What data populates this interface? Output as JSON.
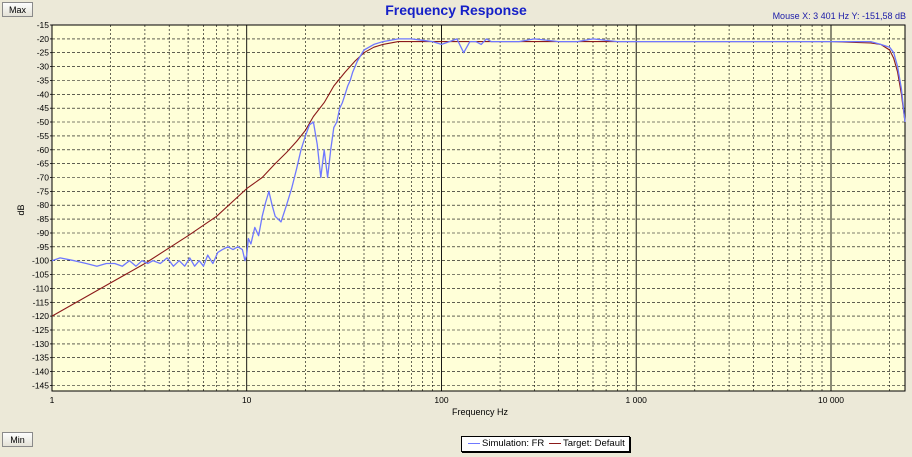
{
  "buttons": {
    "max": "Max",
    "min": "Min"
  },
  "mouse_readout": {
    "x": "Mouse X: 3 401 Hz",
    "y": "Y: -151,58 dB"
  },
  "colors": {
    "plot_bg": "#ffffd8",
    "grid": "#000000",
    "simulation": "#6f78ff",
    "target": "#8b1a1a",
    "title": "#1520c8"
  },
  "chart_data": {
    "type": "line",
    "title": "Frequency Response",
    "xlabel": "Frequency Hz",
    "ylabel": "dB",
    "x_scale": "log",
    "xlim": [
      1,
      24000
    ],
    "ylim": [
      -147,
      -15
    ],
    "grid": true,
    "legend_position": "bottom-center",
    "x_ticks": [
      {
        "value": 1,
        "label": "1"
      },
      {
        "value": 10,
        "label": "10"
      },
      {
        "value": 100,
        "label": "100"
      },
      {
        "value": 1000,
        "label": "1 000"
      },
      {
        "value": 10000,
        "label": "10 000"
      }
    ],
    "y_ticks": [
      {
        "value": -15,
        "label": "-15"
      },
      {
        "value": -20,
        "label": "-20"
      },
      {
        "value": -25,
        "label": "-25"
      },
      {
        "value": -30,
        "label": "-30"
      },
      {
        "value": -35,
        "label": "-35"
      },
      {
        "value": -40,
        "label": "-40"
      },
      {
        "value": -45,
        "label": "-45"
      },
      {
        "value": -50,
        "label": "-50"
      },
      {
        "value": -55,
        "label": "-55"
      },
      {
        "value": -60,
        "label": "-60"
      },
      {
        "value": -65,
        "label": "-65"
      },
      {
        "value": -70,
        "label": "-70"
      },
      {
        "value": -75,
        "label": "-75"
      },
      {
        "value": -80,
        "label": "-80"
      },
      {
        "value": -85,
        "label": "-85"
      },
      {
        "value": -90,
        "label": "-90"
      },
      {
        "value": -95,
        "label": "-95"
      },
      {
        "value": -100,
        "label": "-100"
      },
      {
        "value": -105,
        "label": "-105"
      },
      {
        "value": -110,
        "label": "-110"
      },
      {
        "value": -115,
        "label": "-115"
      },
      {
        "value": -120,
        "label": "-120"
      },
      {
        "value": -125,
        "label": "-125"
      },
      {
        "value": -130,
        "label": "-130"
      },
      {
        "value": -135,
        "label": "-135"
      },
      {
        "value": -140,
        "label": "-140"
      },
      {
        "value": -145,
        "label": "-145"
      }
    ],
    "series": [
      {
        "name": "Simulation: FR",
        "color": "#6f78ff",
        "x": [
          1,
          1.1,
          1.3,
          1.5,
          1.7,
          1.9,
          2.1,
          2.3,
          2.5,
          2.7,
          2.9,
          3.1,
          3.3,
          3.6,
          3.9,
          4.2,
          4.5,
          4.8,
          5.1,
          5.4,
          5.7,
          6.0,
          6.3,
          6.7,
          7.1,
          7.5,
          8.0,
          8.5,
          9.0,
          9.5,
          9.8,
          10.0,
          10.2,
          10.5,
          11,
          11.5,
          12,
          12.5,
          13,
          13.5,
          14,
          15,
          16,
          17,
          18,
          19,
          20,
          21,
          22,
          23,
          24,
          25,
          26,
          27,
          28,
          29,
          30,
          31,
          32,
          33,
          34,
          35,
          37,
          40,
          45,
          50,
          60,
          70,
          80,
          90,
          100,
          110,
          120,
          130,
          140,
          150,
          160,
          170,
          180,
          200,
          250,
          300,
          400,
          500,
          600,
          800,
          1000,
          1500,
          2000,
          3000,
          5000,
          8000,
          12000,
          16000,
          18000,
          20000,
          21000,
          22000,
          23000,
          24000
        ],
        "y": [
          -100,
          -99,
          -100,
          -101,
          -102,
          -101,
          -101,
          -102,
          -100,
          -102,
          -100,
          -101,
          -100,
          -101,
          -99,
          -102,
          -100,
          -102,
          -99,
          -102,
          -100,
          -102,
          -98,
          -101,
          -97,
          -96,
          -95,
          -96,
          -95,
          -96,
          -100,
          -98,
          -92,
          -94,
          -88,
          -91,
          -84,
          -79,
          -75,
          -80,
          -84,
          -86,
          -80,
          -74,
          -67,
          -60,
          -55,
          -51,
          -50,
          -58,
          -70,
          -60,
          -70,
          -60,
          -52,
          -50,
          -45,
          -43,
          -40,
          -37,
          -35,
          -32,
          -28,
          -24,
          -22,
          -21,
          -20,
          -20,
          -20.5,
          -21,
          -22,
          -21,
          -20,
          -25,
          -21,
          -21,
          -22,
          -20,
          -21,
          -21,
          -21,
          -20,
          -21,
          -21,
          -20,
          -21,
          -21,
          -21,
          -21,
          -21,
          -21,
          -21,
          -21,
          -21,
          -22,
          -23,
          -25,
          -30,
          -38,
          -50
        ]
      },
      {
        "name": "Target: Default",
        "color": "#8b1a1a",
        "x": [
          1,
          2,
          3,
          5,
          7,
          10,
          12,
          14,
          16,
          18,
          20,
          22,
          25,
          28,
          32,
          36,
          40,
          45,
          50,
          60,
          80,
          100,
          1000,
          10000,
          16000,
          18000,
          20000,
          21000,
          22000,
          23000,
          24000
        ],
        "y": [
          -120,
          -108,
          -101,
          -91,
          -84,
          -74,
          -70,
          -65,
          -61,
          -57,
          -53,
          -48,
          -43,
          -37,
          -32,
          -28,
          -25,
          -23,
          -22,
          -21,
          -21,
          -21,
          -21,
          -21,
          -21.5,
          -22,
          -24,
          -27,
          -32,
          -40,
          -50
        ]
      }
    ]
  }
}
